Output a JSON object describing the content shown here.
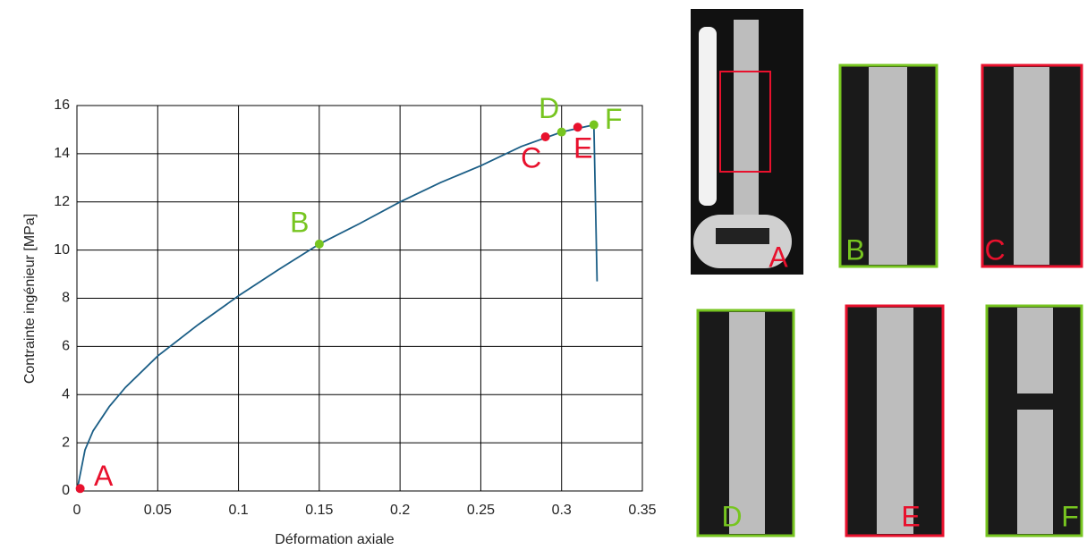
{
  "chart_data": {
    "type": "line",
    "xlabel": "Déformation axiale",
    "ylabel": "Contrainte ingénieur [MPa]",
    "x": [
      0,
      0.005,
      0.01,
      0.02,
      0.03,
      0.05,
      0.075,
      0.1,
      0.125,
      0.15,
      0.175,
      0.2,
      0.225,
      0.25,
      0.275,
      0.3,
      0.32,
      0.322
    ],
    "values": [
      0,
      1.7,
      2.5,
      3.5,
      4.3,
      5.6,
      6.9,
      8.1,
      9.2,
      10.25,
      11.1,
      12.0,
      12.8,
      13.5,
      14.3,
      14.9,
      15.2,
      8.7
    ],
    "color": "#1b5e86",
    "xlim": [
      0,
      0.35
    ],
    "ylim": [
      0,
      16
    ],
    "xticks": [
      0,
      0.05,
      0.1,
      0.15,
      0.2,
      0.25,
      0.3,
      0.35
    ],
    "yticks": [
      0,
      2,
      4,
      6,
      8,
      10,
      12,
      14,
      16
    ],
    "grid": true,
    "points": [
      {
        "label": "A",
        "x": 0.002,
        "y": 0.1,
        "color": "#e8112d"
      },
      {
        "label": "B",
        "x": 0.15,
        "y": 10.25,
        "color": "#77c520"
      },
      {
        "label": "C",
        "x": 0.29,
        "y": 14.7,
        "color": "#e8112d"
      },
      {
        "label": "D",
        "x": 0.3,
        "y": 14.9,
        "color": "#77c520"
      },
      {
        "label": "E",
        "x": 0.31,
        "y": 15.1,
        "color": "#e8112d"
      },
      {
        "label": "F",
        "x": 0.32,
        "y": 15.2,
        "color": "#77c520"
      }
    ]
  },
  "photos": [
    {
      "label": "A",
      "color": "#e8112d"
    },
    {
      "label": "B",
      "color": "#77c520"
    },
    {
      "label": "C",
      "color": "#e8112d"
    },
    {
      "label": "D",
      "color": "#77c520"
    },
    {
      "label": "E",
      "color": "#e8112d"
    },
    {
      "label": "F",
      "color": "#77c520"
    }
  ]
}
